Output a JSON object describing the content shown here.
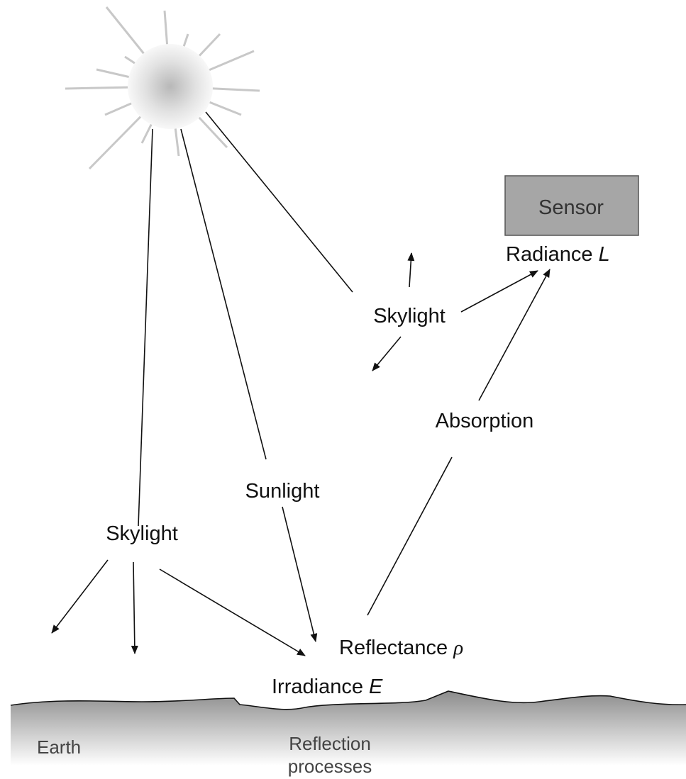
{
  "labels": {
    "sensor": "Sensor",
    "radiance": {
      "text": "Radiance ",
      "symbol": "L"
    },
    "skylight_upper": "Skylight",
    "absorption": "Absorption",
    "sunlight": "Sunlight",
    "skylight_lower": "Skylight",
    "reflectance": {
      "text": "Reflectance ",
      "symbol": "ρ"
    },
    "irradiance": {
      "text": "Irradiance ",
      "symbol": "E"
    },
    "earth": "Earth",
    "reflection_processes": [
      "Reflection",
      "processes"
    ]
  }
}
